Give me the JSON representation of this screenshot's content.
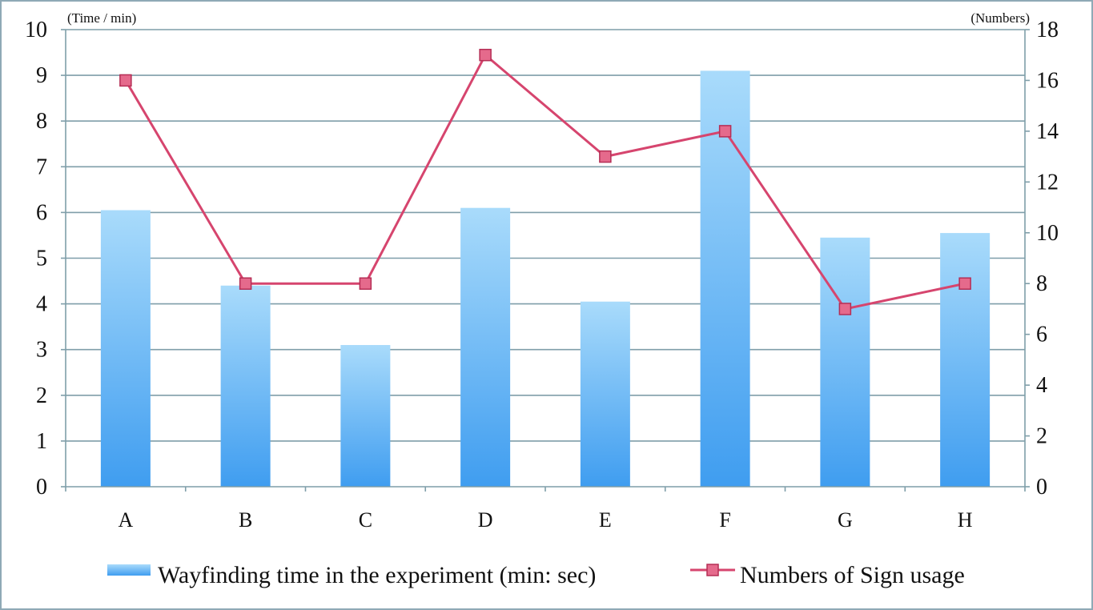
{
  "chart_data": {
    "type": "bar+line",
    "categories": [
      "A",
      "B",
      "C",
      "D",
      "E",
      "F",
      "G",
      "H"
    ],
    "y_left": {
      "label": "(Time / min)",
      "range": [
        0,
        10
      ],
      "ticks": [
        "0",
        "1",
        "2",
        "3",
        "4",
        "5",
        "6",
        "7",
        "8",
        "9",
        "10"
      ]
    },
    "y_right": {
      "label": "(Numbers)",
      "range": [
        0,
        18
      ],
      "ticks": [
        "0",
        "2",
        "4",
        "6",
        "8",
        "10",
        "12",
        "14",
        "16",
        "18"
      ]
    },
    "grid": true,
    "legend_position": "bottom",
    "series": [
      {
        "name": "Wayfinding time in the experiment (min: sec)",
        "type": "bar",
        "axis": "left",
        "color": "#64b4f0",
        "values": [
          6.05,
          4.4,
          3.1,
          6.1,
          4.05,
          9.1,
          5.45,
          5.55
        ]
      },
      {
        "name": "Numbers of Sign usage",
        "type": "line",
        "axis": "right",
        "color": "#d6456e",
        "marker": "square",
        "values": [
          16,
          8,
          8,
          17,
          13,
          14,
          7,
          8
        ]
      }
    ]
  }
}
